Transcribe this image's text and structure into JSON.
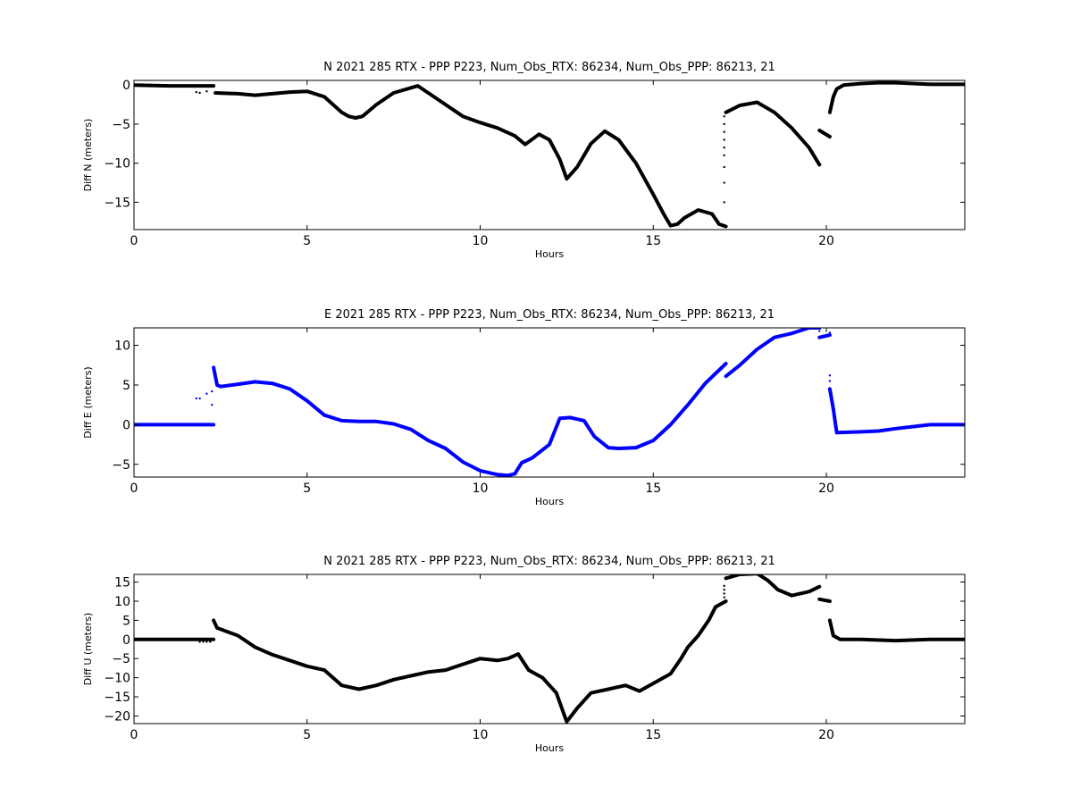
{
  "chart_data": [
    {
      "type": "scatter",
      "title": "N 2021 285 RTX - PPP  P223, Num_Obs_RTX: 86234, Num_Obs_PPP: 86213, 21",
      "xlabel": "Hours",
      "ylabel": "Diff N (meters)",
      "xlim": [
        0,
        24
      ],
      "ylim": [
        -18.5,
        0.6
      ],
      "xticks": [
        0,
        5,
        10,
        15,
        20
      ],
      "yticks": [
        0,
        -5,
        -10,
        -15
      ],
      "color": "#000000",
      "grid": false,
      "series": [
        {
          "x": [
            0,
            1,
            2.3
          ],
          "y": [
            0,
            -0.1,
            -0.1
          ]
        },
        {
          "x": [
            2.35,
            3,
            3.5,
            4,
            4.5,
            5,
            5.5,
            6,
            6.2,
            6.4,
            6.6,
            7,
            7.5,
            8.2,
            8.5,
            9,
            9.5,
            10,
            10.5,
            11,
            11.3,
            11.7,
            12,
            12.3,
            12.5,
            12.8,
            13.2,
            13.6,
            14,
            14.5,
            15,
            15.3,
            15.5,
            15.7,
            15.9,
            16.3,
            16.7,
            16.9,
            17.1
          ],
          "y": [
            -1,
            -1.1,
            -1.3,
            -1.1,
            -0.9,
            -0.8,
            -1.5,
            -3.5,
            -4,
            -4.2,
            -4,
            -2.5,
            -1,
            -0.1,
            -1,
            -2.5,
            -4,
            -4.8,
            -5.5,
            -6.5,
            -7.6,
            -6.3,
            -7,
            -9.5,
            -12,
            -10.5,
            -7.5,
            -5.9,
            -7,
            -10,
            -14,
            -16.5,
            -18,
            -17.8,
            -17,
            -16,
            -16.5,
            -17.8,
            -18.1
          ]
        },
        {
          "x": [
            17.1,
            17.5,
            18,
            18.5,
            19,
            19.5,
            19.8
          ],
          "y": [
            -3.5,
            -2.6,
            -2.2,
            -3.5,
            -5.5,
            -8,
            -10.2
          ]
        },
        {
          "x": [
            19.8,
            20.1
          ],
          "y": [
            -5.8,
            -6.6
          ]
        },
        {
          "x": [
            20.1,
            20.2,
            20.3,
            20.5,
            21,
            21.5,
            22,
            22.5,
            23,
            24
          ],
          "y": [
            -3.5,
            -1.5,
            -0.5,
            0,
            0.2,
            0.3,
            0.3,
            0.2,
            0.1,
            0.1
          ]
        }
      ],
      "scattered_points": {
        "x": [
          1.8,
          1.9,
          2.1,
          17.05,
          17.05,
          17.05,
          17.05,
          17.05,
          17.05,
          17.05,
          17.05,
          17.05
        ],
        "y": [
          -0.9,
          -1.0,
          -0.8,
          -4,
          -5,
          -6,
          -7,
          -8,
          -9,
          -10.5,
          -12.5,
          -15
        ]
      }
    },
    {
      "type": "scatter",
      "title": "E 2021 285 RTX - PPP  P223, Num_Obs_RTX: 86234, Num_Obs_PPP: 86213, 21",
      "xlabel": "Hours",
      "ylabel": "Diff E (meters)",
      "xlim": [
        0,
        24
      ],
      "ylim": [
        -6.6,
        12.2
      ],
      "xticks": [
        0,
        5,
        10,
        15,
        20
      ],
      "yticks": [
        10,
        5,
        0,
        -5
      ],
      "color": "#0000ff",
      "grid": false,
      "series": [
        {
          "x": [
            0,
            1,
            2.3
          ],
          "y": [
            0,
            0,
            0
          ]
        },
        {
          "x": [
            2.3,
            2.4,
            2.5,
            3,
            3.5,
            4,
            4.5,
            5,
            5.5,
            6,
            6.5,
            7,
            7.5,
            8,
            8.5,
            9,
            9.5,
            10,
            10.5,
            10.8,
            11,
            11.2,
            11.5,
            12,
            12.3,
            12.6,
            13,
            13.3,
            13.7,
            14,
            14.5,
            15,
            15.5,
            16,
            16.5,
            17.1
          ],
          "y": [
            7.2,
            5,
            4.8,
            5.1,
            5.4,
            5.2,
            4.5,
            3,
            1.2,
            0.5,
            0.4,
            0.4,
            0.1,
            -0.6,
            -2,
            -3,
            -4.7,
            -5.8,
            -6.3,
            -6.4,
            -6.2,
            -4.8,
            -4.2,
            -2.5,
            0.8,
            0.9,
            0.5,
            -1.5,
            -2.9,
            -3,
            -2.9,
            -2,
            0,
            2.5,
            5.2,
            7.7
          ]
        },
        {
          "x": [
            17.1,
            17.5,
            18,
            18.5,
            19,
            19.5,
            19.8
          ],
          "y": [
            6.1,
            7.5,
            9.5,
            11,
            11.5,
            12.2,
            12.2
          ]
        },
        {
          "x": [
            19.8,
            20.1
          ],
          "y": [
            11,
            11.3
          ]
        },
        {
          "x": [
            20.1,
            20.2,
            20.3,
            21,
            21.5,
            22,
            23,
            24
          ],
          "y": [
            4.5,
            2,
            -1,
            -0.9,
            -0.8,
            -0.5,
            0,
            0
          ]
        }
      ],
      "scattered_points": {
        "x": [
          1.8,
          1.9,
          2.1,
          2.25,
          2.25,
          20.1,
          20.1,
          19.8,
          20.1
        ],
        "y": [
          3.3,
          3.3,
          3.9,
          2.5,
          4.2,
          5.5,
          6.2,
          11.8,
          11.6
        ]
      }
    },
    {
      "type": "scatter",
      "title": "N 2021 285 RTX - PPP  P223, Num_Obs_RTX: 86234, Num_Obs_PPP: 86213, 21",
      "xlabel": "Hours",
      "ylabel": "Diff U (meters)",
      "xlim": [
        0,
        24
      ],
      "ylim": [
        -22,
        17
      ],
      "xticks": [
        0,
        5,
        10,
        15,
        20
      ],
      "yticks": [
        15,
        10,
        5,
        0,
        -5,
        -10,
        -15,
        -20
      ],
      "color": "#000000",
      "grid": false,
      "series": [
        {
          "x": [
            0,
            1,
            2.3
          ],
          "y": [
            0,
            0,
            0
          ]
        },
        {
          "x": [
            2.3,
            2.4,
            3,
            3.5,
            4,
            4.5,
            5,
            5.5,
            6,
            6.5,
            7,
            7.5,
            8,
            8.5,
            9,
            9.5,
            10,
            10.5,
            10.8,
            11.1,
            11.4,
            11.8,
            12.2,
            12.5,
            12.8,
            13.2,
            13.7,
            14.2,
            14.6,
            15,
            15.5,
            15.8,
            16,
            16.3,
            16.6,
            16.8,
            17.1
          ],
          "y": [
            5,
            3,
            1,
            -2,
            -4,
            -5.5,
            -7,
            -8,
            -12,
            -13,
            -12,
            -10.5,
            -9.5,
            -8.5,
            -8,
            -6.5,
            -5,
            -5.5,
            -5,
            -3.8,
            -8,
            -10,
            -14,
            -21.5,
            -18,
            -14,
            -13,
            -12,
            -13.5,
            -11.5,
            -9,
            -5,
            -2,
            1,
            5,
            8.5,
            10
          ]
        },
        {
          "x": [
            17.1,
            17.5,
            18,
            18.3,
            18.6,
            19,
            19.5,
            19.8
          ],
          "y": [
            16,
            17,
            17.2,
            15.5,
            13,
            11.5,
            12.5,
            13.8
          ]
        },
        {
          "x": [
            19.8,
            20.1
          ],
          "y": [
            10.5,
            10
          ]
        },
        {
          "x": [
            20.1,
            20.2,
            20.4,
            21,
            22,
            23,
            24
          ],
          "y": [
            5,
            1,
            0,
            0,
            -0.3,
            0,
            0
          ]
        }
      ],
      "scattered_points": {
        "x": [
          1.9,
          2.0,
          2.1,
          2.2,
          17.05,
          17.05,
          17.05,
          17.05
        ],
        "y": [
          -0.6,
          -0.6,
          -0.6,
          -0.6,
          11,
          12,
          13,
          14
        ]
      }
    }
  ]
}
